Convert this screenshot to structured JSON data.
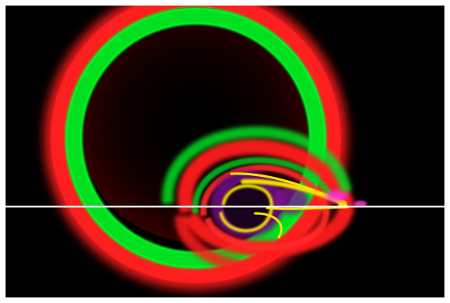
{
  "image": {
    "description_kind": "simulation-render",
    "colors": {
      "background": "#000000",
      "outer_ring": "#ff1a1a",
      "inner_ring": "#00ee22",
      "yellow_structure": "#f4e400",
      "purple_structure": "#8a1ca0",
      "magenta_highlight": "#ff33dd",
      "scan_line": "#ffffff"
    }
  }
}
